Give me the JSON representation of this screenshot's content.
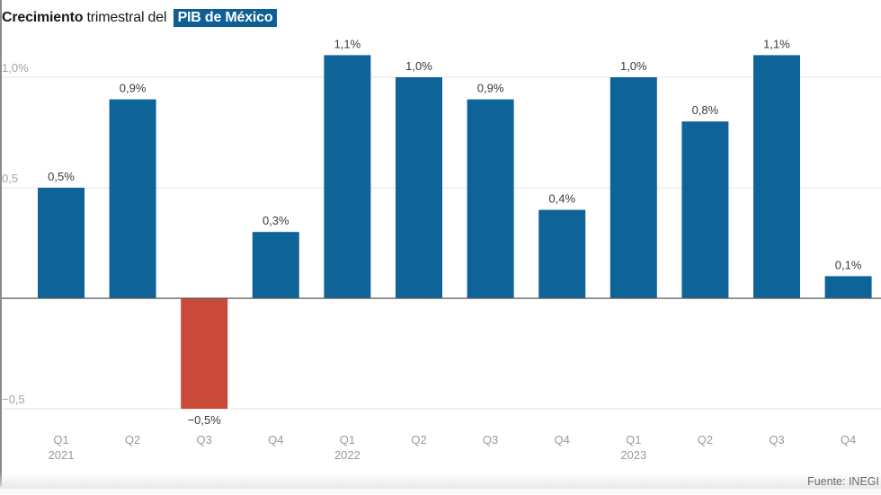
{
  "title": {
    "bold": "Crecimiento",
    "normal": "trimestral del",
    "highlight": "PIB de México"
  },
  "source": "Fuente: INEGI",
  "colors": {
    "positive": "#0e6399",
    "negative": "#c94a38",
    "title_highlight": "#0e5f95",
    "grid": "#e6e6e6",
    "zero_line": "#555555"
  },
  "chart_data": {
    "type": "bar",
    "title": "Crecimiento trimestral del PIB de México",
    "xlabel": "",
    "ylabel": "",
    "ylim": [
      -0.6,
      1.15
    ],
    "yticks": [
      {
        "value": 1.0,
        "label": "1,0%"
      },
      {
        "value": 0.5,
        "label": "0,5"
      },
      {
        "value": -0.5,
        "label": "−0,5"
      }
    ],
    "grid": true,
    "categories": [
      {
        "quarter": "Q1",
        "year": "2021"
      },
      {
        "quarter": "Q2",
        "year": ""
      },
      {
        "quarter": "Q3",
        "year": ""
      },
      {
        "quarter": "Q4",
        "year": ""
      },
      {
        "quarter": "Q1",
        "year": "2022"
      },
      {
        "quarter": "Q2",
        "year": ""
      },
      {
        "quarter": "Q3",
        "year": ""
      },
      {
        "quarter": "Q4",
        "year": ""
      },
      {
        "quarter": "Q1",
        "year": "2023"
      },
      {
        "quarter": "Q2",
        "year": ""
      },
      {
        "quarter": "Q3",
        "year": ""
      },
      {
        "quarter": "Q4",
        "year": ""
      }
    ],
    "values": [
      0.5,
      0.9,
      -0.5,
      0.3,
      1.1,
      1.0,
      0.9,
      0.4,
      1.0,
      0.8,
      1.1,
      0.1
    ],
    "labels": [
      "0,5%",
      "0,9%",
      "−0,5%",
      "0,3%",
      "1,1%",
      "1,0%",
      "0,9%",
      "0,4%",
      "1,0%",
      "0,8%",
      "1,1%",
      "0,1%"
    ],
    "legend": "none"
  }
}
